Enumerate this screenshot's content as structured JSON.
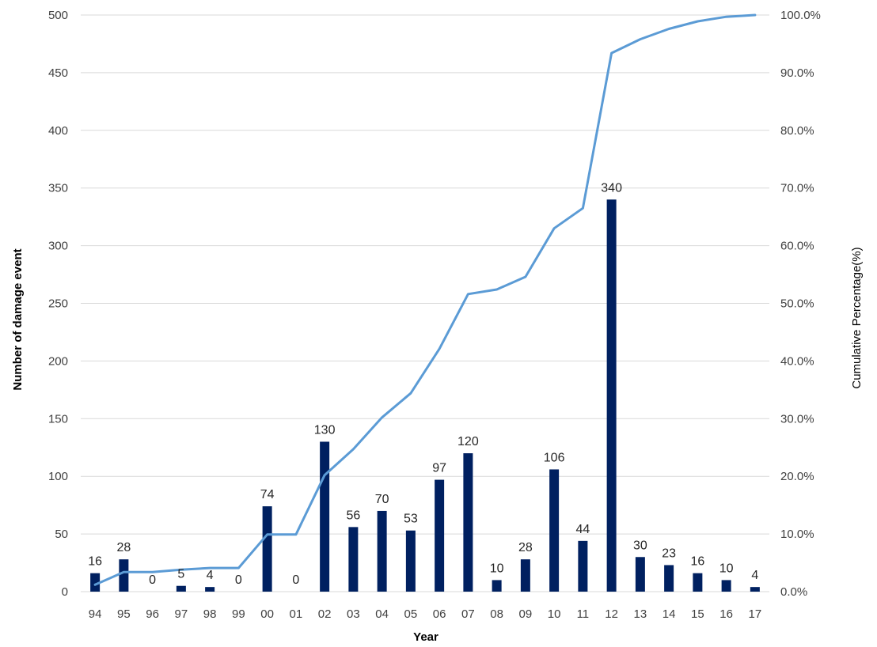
{
  "chart_data": {
    "type": "bar",
    "xlabel": "Year",
    "ylabel": "Number of damage event",
    "y2label": "Cumulative Percentage(%)",
    "ylim": [
      0,
      500
    ],
    "y2lim": [
      0,
      100
    ],
    "yticks": [
      "0",
      "50",
      "100",
      "150",
      "200",
      "250",
      "300",
      "350",
      "400",
      "450",
      "500"
    ],
    "y2ticks": [
      "0.0%",
      "10.0%",
      "20.0%",
      "30.0%",
      "40.0%",
      "50.0%",
      "60.0%",
      "70.0%",
      "80.0%",
      "90.0%",
      "100.0%"
    ],
    "grid": true,
    "legend": "none",
    "categories": [
      "94",
      "95",
      "96",
      "97",
      "98",
      "99",
      "00",
      "01",
      "02",
      "03",
      "04",
      "05",
      "06",
      "07",
      "08",
      "09",
      "10",
      "11",
      "12",
      "13",
      "14",
      "15",
      "16",
      "17"
    ],
    "series": [
      {
        "type": "bar",
        "axis": "left",
        "values": [
          16,
          28,
          0,
          5,
          4,
          0,
          74,
          0,
          130,
          56,
          70,
          53,
          97,
          120,
          10,
          28,
          106,
          44,
          340,
          30,
          23,
          16,
          10,
          4
        ],
        "color": "#002060"
      },
      {
        "type": "line",
        "axis": "right",
        "values": [
          1.2,
          3.4,
          3.4,
          3.8,
          4.1,
          4.1,
          9.9,
          9.9,
          20.2,
          24.7,
          30.2,
          34.4,
          42.1,
          51.6,
          52.4,
          54.6,
          63.0,
          66.5,
          93.4,
          95.8,
          97.6,
          98.9,
          99.7,
          100.0
        ],
        "color": "#5b9bd5"
      }
    ]
  }
}
